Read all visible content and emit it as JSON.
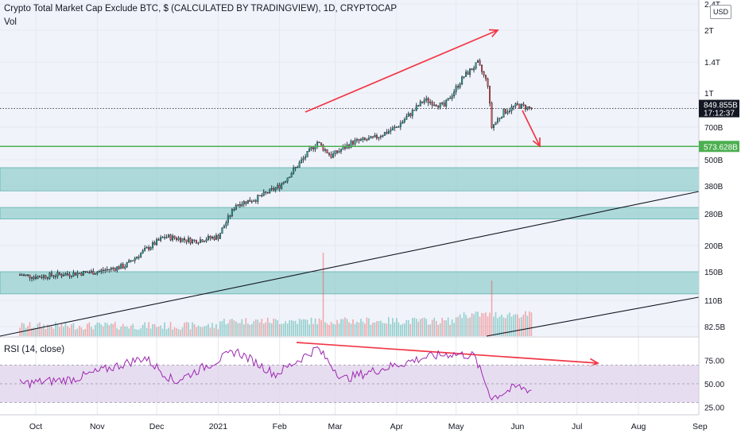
{
  "header": {
    "title": "Crypto Total Market Cap Exclude BTC, $ (CALCULATED BY TRADINGVIEW), 1D, CRYPTOCAP",
    "volume_label": "Vol",
    "currency_button": "USD"
  },
  "rsi_panel": {
    "label": "RSI (14, close)"
  },
  "colors": {
    "up": "#26a69a",
    "down": "#ef5350",
    "zone": "#80c8c4",
    "support_line": "#4caf50",
    "rsi_line": "#9c27b0",
    "rsi_band": "#e1d5ec",
    "arrow": "#f23645",
    "trendline": "#131722"
  },
  "chart_data": [
    {
      "type": "candlestick",
      "x_tick_labels": [
        "Oct",
        "Nov",
        "Dec",
        "2021",
        "Feb",
        "Mar",
        "Apr",
        "May",
        "Jun",
        "Jul",
        "Aug",
        "Sep"
      ],
      "y_tick_labels": [
        "2.4T",
        "2T",
        "1.4T",
        "1T",
        "700B",
        "500B",
        "380B",
        "280B",
        "200B",
        "150B",
        "110B",
        "82.5B"
      ],
      "y_tick_values": [
        2400,
        2000,
        1400,
        1000,
        700,
        500,
        380,
        280,
        200,
        150,
        110,
        82.5
      ],
      "y_unit": "USD (billions)",
      "y_scale": "log",
      "last_price": {
        "label": "849.855B",
        "countdown": "17:12:37"
      },
      "support_level": {
        "label": "573.628B",
        "value": 573.628
      },
      "zones": [
        {
          "from": 360,
          "to": 460
        },
        {
          "from": 265,
          "to": 300
        },
        {
          "from": 118,
          "to": 150
        }
      ],
      "path_keypoints": [
        {
          "date": "2020-09-23",
          "close": 145
        },
        {
          "date": "2020-10-01",
          "close": 142
        },
        {
          "date": "2020-10-15",
          "close": 146
        },
        {
          "date": "2020-11-01",
          "close": 150
        },
        {
          "date": "2020-11-15",
          "close": 160
        },
        {
          "date": "2020-11-25",
          "close": 190
        },
        {
          "date": "2020-12-05",
          "close": 220
        },
        {
          "date": "2020-12-20",
          "close": 210
        },
        {
          "date": "2021-01-01",
          "close": 220
        },
        {
          "date": "2021-01-10",
          "close": 310
        },
        {
          "date": "2021-01-20",
          "close": 330
        },
        {
          "date": "2021-02-01",
          "close": 380
        },
        {
          "date": "2021-02-10",
          "close": 470
        },
        {
          "date": "2021-02-20",
          "close": 600
        },
        {
          "date": "2021-02-27",
          "close": 520
        },
        {
          "date": "2021-03-10",
          "close": 600
        },
        {
          "date": "2021-03-20",
          "close": 620
        },
        {
          "date": "2021-04-01",
          "close": 700
        },
        {
          "date": "2021-04-15",
          "close": 930
        },
        {
          "date": "2021-04-25",
          "close": 870
        },
        {
          "date": "2021-05-05",
          "close": 1200
        },
        {
          "date": "2021-05-12",
          "close": 1380
        },
        {
          "date": "2021-05-17",
          "close": 1100
        },
        {
          "date": "2021-05-19",
          "close": 700
        },
        {
          "date": "2021-05-25",
          "close": 820
        },
        {
          "date": "2021-06-01",
          "close": 880
        },
        {
          "date": "2021-06-08",
          "close": 850
        }
      ]
    },
    {
      "type": "line",
      "name": "RSI (14, close)",
      "y_tick_labels": [
        "75.00",
        "50.00",
        "25.00"
      ],
      "y_tick_values": [
        75,
        50,
        25
      ],
      "levels": {
        "upper": 70,
        "lower": 30
      },
      "path_keypoints": [
        {
          "date": "2020-09-23",
          "value": 50
        },
        {
          "date": "2020-10-20",
          "value": 55
        },
        {
          "date": "2020-11-25",
          "value": 78
        },
        {
          "date": "2020-12-10",
          "value": 52
        },
        {
          "date": "2021-01-10",
          "value": 85
        },
        {
          "date": "2021-01-30",
          "value": 60
        },
        {
          "date": "2021-02-20",
          "value": 88
        },
        {
          "date": "2021-03-05",
          "value": 55
        },
        {
          "date": "2021-04-15",
          "value": 78
        },
        {
          "date": "2021-04-28",
          "value": 82
        },
        {
          "date": "2021-05-10",
          "value": 80
        },
        {
          "date": "2021-05-19",
          "value": 35
        },
        {
          "date": "2021-06-01",
          "value": 47
        },
        {
          "date": "2021-06-08",
          "value": 43
        }
      ]
    }
  ]
}
